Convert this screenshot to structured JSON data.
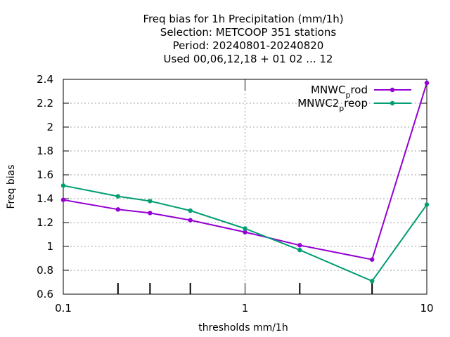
{
  "chart_data": {
    "type": "line",
    "title_lines": [
      "Freq bias  for 1h Precipitation (mm/1h)",
      "Selection: METCOOP    351 stations",
      "Period: 20240801-20240820",
      "Used  00,06,12,18 + 01 02 ... 12"
    ],
    "xlabel": "thresholds mm/1h",
    "ylabel": "Freq bias",
    "xscale": "log",
    "xlim": [
      0.1,
      10
    ],
    "ylim": [
      0.6,
      2.4
    ],
    "x_ticks": [
      {
        "value": 0.1,
        "label": "0.1"
      },
      {
        "value": 1,
        "label": "1"
      },
      {
        "value": 10,
        "label": "10"
      }
    ],
    "y_ticks": [
      {
        "value": 0.6,
        "label": "0.6"
      },
      {
        "value": 0.8,
        "label": "0.8"
      },
      {
        "value": 1.0,
        "label": "1"
      },
      {
        "value": 1.2,
        "label": "1.2"
      },
      {
        "value": 1.4,
        "label": "1.4"
      },
      {
        "value": 1.6,
        "label": "1.6"
      },
      {
        "value": 1.8,
        "label": "1.8"
      },
      {
        "value": 2.0,
        "label": "2"
      },
      {
        "value": 2.2,
        "label": "2.2"
      },
      {
        "value": 2.4,
        "label": "2.4"
      }
    ],
    "grid": true,
    "legend_position": "top-right",
    "x": [
      0.1,
      0.2,
      0.3,
      0.5,
      1,
      2,
      5,
      10
    ],
    "series": [
      {
        "name": "MNWC_prod",
        "legend_main": "MNWC",
        "legend_sub": "p",
        "legend_tail": "rod",
        "color": "#9400d3",
        "values": [
          1.39,
          1.31,
          1.28,
          1.22,
          1.12,
          1.01,
          0.89,
          2.37
        ]
      },
      {
        "name": "MNWC2_preop",
        "legend_main": "MNWC2",
        "legend_sub": "p",
        "legend_tail": "reop",
        "color": "#009e73",
        "values": [
          1.51,
          1.42,
          1.38,
          1.3,
          1.15,
          0.97,
          0.71,
          1.35
        ]
      }
    ]
  }
}
